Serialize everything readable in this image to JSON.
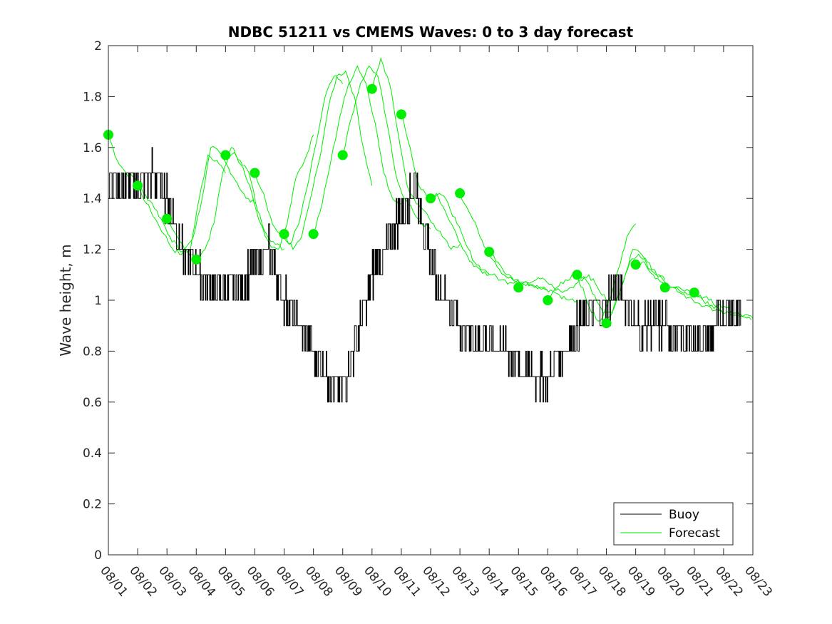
{
  "chart_data": {
    "type": "line",
    "title": "NDBC 51211 vs CMEMS Waves: 0 to 3 day forecast",
    "xlabel": "",
    "ylabel": "Wave height, m",
    "xlim": [
      0,
      22
    ],
    "ylim": [
      0,
      2
    ],
    "x_tick_labels": [
      "08/01",
      "08/02",
      "08/03",
      "08/04",
      "08/05",
      "08/06",
      "08/07",
      "08/08",
      "08/09",
      "08/10",
      "08/11",
      "08/12",
      "08/13",
      "08/14",
      "08/15",
      "08/16",
      "08/17",
      "08/18",
      "08/19",
      "08/20",
      "08/21",
      "08/22",
      "08/23"
    ],
    "y_ticks": [
      0,
      0.2,
      0.4,
      0.6,
      0.8,
      1,
      1.2,
      1.4,
      1.6,
      1.8,
      2
    ],
    "y_tick_labels": [
      "0",
      "0.2",
      "0.4",
      "0.6",
      "0.8",
      "1",
      "1.2",
      "1.4",
      "1.6",
      "1.8",
      "2"
    ],
    "legend": {
      "position": "bottom-right",
      "entries": [
        "Buoy",
        "Forecast"
      ]
    },
    "colors": {
      "buoy": "#000000",
      "forecast": "#00ee00",
      "marker": "#00ee00",
      "axis": "#262626"
    },
    "buoy": {
      "name": "Buoy",
      "x": [
        0,
        0.5,
        1,
        1.5,
        2,
        2.5,
        3,
        3.5,
        4,
        4.5,
        5,
        5.5,
        6,
        6.5,
        7,
        7.5,
        8,
        8.5,
        9,
        9.5,
        10,
        10.5,
        11,
        11.5,
        12,
        12.5,
        13,
        13.5,
        14,
        14.5,
        15,
        15.5,
        16,
        16.5,
        17,
        17.5,
        18,
        18.5,
        19,
        19.5,
        20,
        20.5,
        21,
        21.5,
        22
      ],
      "y": [
        1.5,
        1.45,
        1.45,
        1.5,
        1.4,
        1.2,
        1.1,
        1.05,
        1.05,
        1.05,
        1.15,
        1.2,
        1.0,
        0.9,
        0.8,
        0.7,
        0.65,
        0.85,
        1.1,
        1.2,
        1.35,
        1.45,
        1.15,
        1.0,
        0.9,
        0.85,
        0.85,
        0.8,
        0.75,
        0.7,
        0.7,
        0.8,
        0.9,
        0.95,
        1.0,
        1.05,
        0.9,
        0.9,
        0.9,
        0.85,
        0.85,
        0.85,
        0.95,
        0.95,
        0.95
      ]
    },
    "forecast_runs": [
      {
        "name": "Forecast",
        "start": 0,
        "y": [
          1.65,
          1.55,
          1.5,
          1.48,
          1.42,
          1.38,
          1.32,
          1.25,
          1.2,
          1.19,
          1.17
        ]
      },
      {
        "name": "Forecast",
        "start": 1,
        "y": [
          1.45,
          1.38,
          1.32,
          1.26,
          1.2,
          1.18,
          1.2,
          1.4,
          1.57,
          1.55,
          1.5
        ]
      },
      {
        "name": "Forecast",
        "start": 2,
        "y": [
          1.32,
          1.26,
          1.2,
          1.25,
          1.4,
          1.6,
          1.58,
          1.52,
          1.46,
          1.4,
          1.38
        ]
      },
      {
        "name": "Forecast",
        "start": 3,
        "y": [
          1.16,
          1.2,
          1.3,
          1.5,
          1.6,
          1.55,
          1.5,
          1.35,
          1.26,
          1.22,
          1.2
        ]
      },
      {
        "name": "Forecast",
        "start": 4,
        "y": [
          1.57,
          1.58,
          1.52,
          1.42,
          1.3,
          1.22,
          1.2,
          1.3,
          1.48,
          1.55,
          1.65
        ]
      },
      {
        "name": "Forecast",
        "start": 5,
        "y": [
          1.5,
          1.42,
          1.3,
          1.25,
          1.22,
          1.3,
          1.45,
          1.62,
          1.8,
          1.88,
          1.85
        ]
      },
      {
        "name": "Forecast",
        "start": 6,
        "y": [
          1.26,
          1.2,
          1.25,
          1.4,
          1.55,
          1.75,
          1.88,
          1.9,
          1.8,
          1.6,
          1.45
        ]
      },
      {
        "name": "Forecast",
        "start": 7,
        "y": [
          1.26,
          1.38,
          1.55,
          1.72,
          1.85,
          1.92,
          1.85,
          1.7,
          1.5,
          1.4,
          1.38
        ]
      },
      {
        "name": "Forecast",
        "start": 8,
        "y": [
          1.57,
          1.72,
          1.85,
          1.92,
          1.88,
          1.7,
          1.5,
          1.4,
          1.35,
          1.3,
          1.28
        ]
      },
      {
        "name": "Forecast",
        "start": 9,
        "y": [
          1.83,
          1.95,
          1.85,
          1.65,
          1.45,
          1.38,
          1.35,
          1.3,
          1.25,
          1.2,
          1.22
        ]
      },
      {
        "name": "Forecast",
        "start": 10,
        "y": [
          1.73,
          1.6,
          1.45,
          1.4,
          1.42,
          1.35,
          1.28,
          1.2,
          1.15,
          1.12,
          1.1
        ]
      },
      {
        "name": "Forecast",
        "start": 11,
        "y": [
          1.4,
          1.42,
          1.38,
          1.3,
          1.22,
          1.15,
          1.12,
          1.1,
          1.08,
          1.07,
          1.08
        ]
      },
      {
        "name": "Forecast",
        "start": 12,
        "y": [
          1.42,
          1.35,
          1.28,
          1.2,
          1.15,
          1.1,
          1.08,
          1.06,
          1.06,
          1.05,
          1.04
        ]
      },
      {
        "name": "Forecast",
        "start": 13,
        "y": [
          1.19,
          1.15,
          1.1,
          1.08,
          1.07,
          1.06,
          1.05,
          1.04,
          1.02,
          1.0,
          1.0
        ]
      },
      {
        "name": "Forecast",
        "start": 14,
        "y": [
          1.05,
          1.07,
          1.08,
          1.08,
          1.05,
          1.03,
          1.05,
          1.08,
          1.1,
          1.05,
          1.0
        ]
      },
      {
        "name": "Forecast",
        "start": 15,
        "y": [
          1.0,
          1.05,
          1.08,
          1.1,
          1.05,
          0.95,
          0.92,
          1.0,
          1.12,
          1.25,
          1.3
        ]
      },
      {
        "name": "Forecast",
        "start": 16,
        "y": [
          1.1,
          1.08,
          1.02,
          0.95,
          0.95,
          1.05,
          1.15,
          1.18,
          1.15,
          1.1,
          1.08
        ]
      },
      {
        "name": "Forecast",
        "start": 17,
        "y": [
          0.91,
          0.98,
          1.08,
          1.2,
          1.18,
          1.12,
          1.1,
          1.06,
          1.05,
          1.03,
          1.02
        ]
      },
      {
        "name": "Forecast",
        "start": 18,
        "y": [
          1.14,
          1.15,
          1.1,
          1.07,
          1.05,
          1.03,
          1.01,
          0.99,
          0.98,
          0.96,
          0.95
        ]
      },
      {
        "name": "Forecast",
        "start": 19,
        "y": [
          1.05,
          1.05,
          1.04,
          1.03,
          1.02,
          1.0,
          0.98,
          0.97,
          0.95,
          0.94,
          0.93
        ]
      },
      {
        "name": "Forecast",
        "start": 20,
        "y": [
          1.03,
          1.0,
          0.98,
          0.96,
          0.95,
          0.94,
          0.93,
          0.92
        ]
      }
    ],
    "forecast_markers": {
      "x": [
        0,
        1,
        2,
        3,
        4,
        5,
        6,
        7,
        8,
        9,
        10,
        11,
        12,
        13,
        14,
        15,
        16,
        17,
        18,
        19,
        20
      ],
      "y": [
        1.65,
        1.45,
        1.32,
        1.16,
        1.57,
        1.5,
        1.26,
        1.26,
        1.57,
        1.83,
        1.73,
        1.4,
        1.42,
        1.19,
        1.05,
        1.0,
        1.1,
        0.91,
        1.14,
        1.05,
        1.03
      ]
    }
  }
}
